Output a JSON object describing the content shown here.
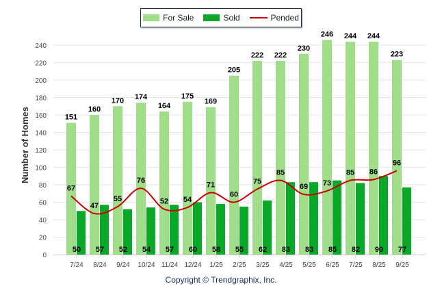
{
  "chart_data": {
    "type": "bar",
    "title": "",
    "xlabel": "",
    "ylabel": "Number of Homes",
    "ylim": [
      0,
      240
    ],
    "yticks": [
      0,
      20,
      40,
      60,
      80,
      100,
      120,
      140,
      160,
      180,
      200,
      220,
      240
    ],
    "grid": true,
    "legend_position": "top-center",
    "categories": [
      "7/24",
      "8/24",
      "9/24",
      "10/24",
      "11/24",
      "12/24",
      "1/25",
      "2/25",
      "3/25",
      "4/25",
      "5/25",
      "6/25",
      "7/25",
      "8/25",
      "9/25"
    ],
    "series": [
      {
        "name": "For Sale",
        "type": "bar",
        "color": "#a0de8a",
        "values": [
          151,
          160,
          170,
          174,
          164,
          175,
          169,
          205,
          222,
          222,
          230,
          246,
          244,
          244,
          223
        ]
      },
      {
        "name": "Sold",
        "type": "bar",
        "color": "#0aa828",
        "values": [
          50,
          57,
          52,
          54,
          57,
          60,
          58,
          55,
          62,
          83,
          83,
          85,
          82,
          90,
          77
        ]
      },
      {
        "name": "Pended",
        "type": "line",
        "color": "#cc0000",
        "values": [
          67,
          47,
          55,
          76,
          52,
          54,
          71,
          60,
          75,
          85,
          69,
          73,
          85,
          86,
          96
        ]
      }
    ]
  },
  "copyright": "Copyright © Trendgraphix, Inc."
}
